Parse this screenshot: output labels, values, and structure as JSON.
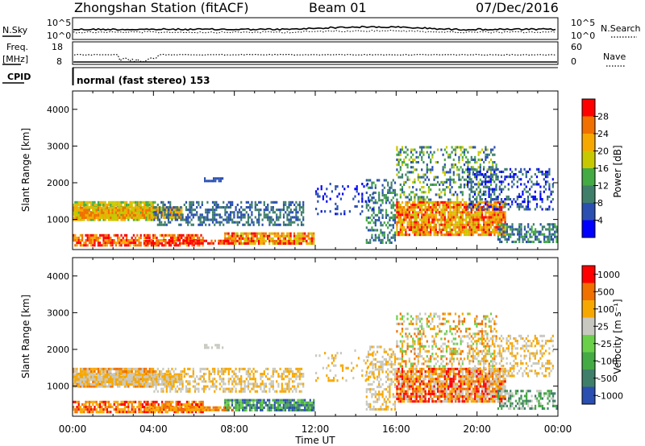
{
  "header": {
    "station": "Zhongshan Station (fitACF)",
    "beam": "Beam 01",
    "date": "07/Dec/2016"
  },
  "status_panels": {
    "nsky_label": "N.Sky",
    "nsky_ticks": [
      "10^5",
      "10^0"
    ],
    "nsearch_label": "N.Search",
    "nsearch_ticks": [
      "10^5",
      "10^0"
    ],
    "freq_label": "Freq.",
    "freq_unit": "[MHz]",
    "freq_ticks": [
      "18",
      "8"
    ],
    "nave_label": "Nave",
    "nave_ticks": [
      "60",
      "0"
    ],
    "cpid_label": "CPID",
    "cpid_text": "normal (fast stereo) 153"
  },
  "chart_data": [
    {
      "type": "heatmap",
      "name": "power",
      "ylabel": "Slant Range [km]",
      "yticks": [
        "4000",
        "3000",
        "2000",
        "1000"
      ],
      "ylim": [
        180,
        4500
      ],
      "xlim": [
        0,
        24
      ],
      "colorbar_label": "Power [dB]",
      "colorbar_ticks": [
        "28",
        "24",
        "20",
        "16",
        "12",
        "8",
        "4"
      ],
      "colors": [
        "#0000ff",
        "#2a4fb0",
        "#3f7f6a",
        "#44aa44",
        "#c8c800",
        "#f7a800",
        "#f07000",
        "#ff0000"
      ]
    },
    {
      "type": "heatmap",
      "name": "velocity",
      "ylabel": "Slant Range [km]",
      "yticks": [
        "4000",
        "3000",
        "2000",
        "1000"
      ],
      "ylim": [
        180,
        4500
      ],
      "xlim": [
        0,
        24
      ],
      "colorbar_label": "Velocity [m s⁻¹]",
      "colorbar_ticks": [
        "1000",
        "500",
        "100",
        "25",
        "-25",
        "-100",
        "-500",
        "-1000"
      ],
      "colors": [
        "#2a4fb0",
        "#3f7f6a",
        "#44aa44",
        "#6ad04a",
        "#c8c8c0",
        "#f7a800",
        "#f07000",
        "#ff0000"
      ]
    }
  ],
  "x_axis": {
    "ticks": [
      "00:00",
      "04:00",
      "08:00",
      "12:00",
      "16:00",
      "20:00",
      "00:00"
    ],
    "xlabel": "Time UT"
  }
}
